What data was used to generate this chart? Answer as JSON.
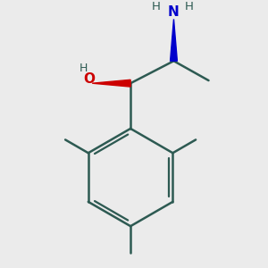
{
  "background_color": "#ebebeb",
  "bond_color": "#2d5a52",
  "oh_color": "#cc0000",
  "nh2_color": "#0000cc",
  "line_width": 1.8,
  "figsize": [
    3.0,
    3.0
  ],
  "dpi": 100,
  "xlim": [
    -1.8,
    1.8
  ],
  "ylim": [
    -2.3,
    1.5
  ]
}
